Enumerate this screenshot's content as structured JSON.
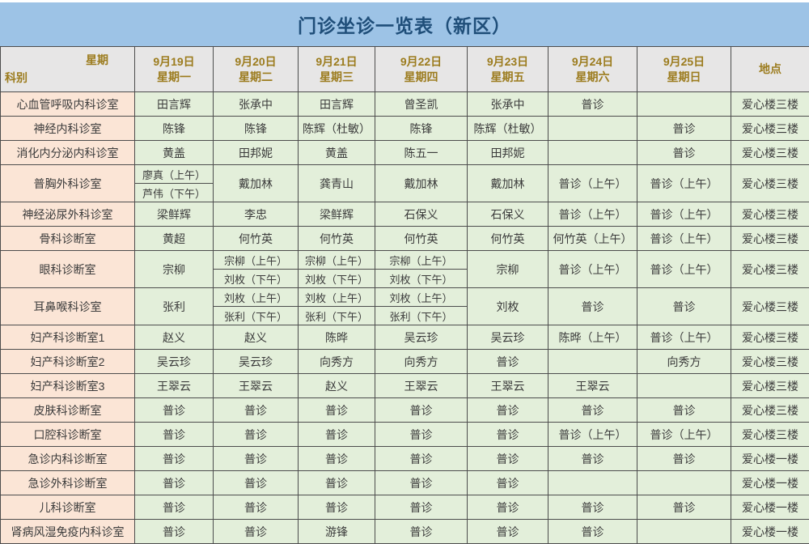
{
  "title": "门诊坐诊一览表（新区）",
  "colors": {
    "title_bg": "#9DC3E6",
    "title_text": "#1F4E79",
    "header_bg": "#E7E6E6",
    "header_text": "#9C7C1E",
    "dept_col_bg": "#FBE5D6",
    "cell_bg": "#E3EFDA",
    "border": "#4D4D4D"
  },
  "header": {
    "corner_top": "星期",
    "corner_bottom": "科别",
    "days": [
      {
        "date": "9月19日",
        "weekday": "星期一"
      },
      {
        "date": "9月20日",
        "weekday": "星期二"
      },
      {
        "date": "9月21日",
        "weekday": "星期三"
      },
      {
        "date": "9月22日",
        "weekday": "星期四"
      },
      {
        "date": "9月23日",
        "weekday": "星期五"
      },
      {
        "date": "9月24日",
        "weekday": "星期六"
      },
      {
        "date": "9月25日",
        "weekday": "星期日"
      }
    ],
    "location_label": "地点"
  },
  "rows": [
    {
      "name": "心血管呼吸内科诊室",
      "cells": [
        "田言辉",
        "张承中",
        "田言辉",
        "曾圣凯",
        "张承中",
        "普诊",
        ""
      ],
      "location": "爱心楼三楼"
    },
    {
      "name": "神经内科诊室",
      "cells": [
        "陈锋",
        "陈锋",
        "陈辉（杜敏）",
        "陈锋",
        "陈辉（杜敏）",
        "",
        "普诊"
      ],
      "location": "爱心楼三楼"
    },
    {
      "name": "消化内分泌内科诊室",
      "cells": [
        "黄盖",
        "田邦妮",
        "黄盖",
        "陈五一",
        "田邦妮",
        "",
        "普诊"
      ],
      "location": "爱心楼三楼"
    },
    {
      "name": "普胸外科诊室",
      "cells": [
        {
          "top": "廖真（上午）",
          "bottom": "芦伟（下午）"
        },
        "戴加林",
        "龚青山",
        "戴加林",
        "戴加林",
        "普诊（上午）",
        "普诊（上午）"
      ],
      "location": "爱心楼三楼"
    },
    {
      "name": "神经泌尿外科诊室",
      "cells": [
        "梁鲜辉",
        "李忠",
        "梁鲜辉",
        "石保义",
        "石保义",
        "普诊（上午）",
        "普诊（上午）"
      ],
      "location": "爱心楼三楼"
    },
    {
      "name": "骨科诊断室",
      "cells": [
        "黄超",
        "何竹英",
        "何竹英",
        "何竹英",
        "何竹英",
        "何竹英（上午）",
        "普诊（上午）"
      ],
      "location": "爱心楼三楼"
    },
    {
      "name": "眼科诊断室",
      "cells": [
        "宗柳",
        {
          "top": "宗柳（上午）",
          "bottom": "刘枚（下午）"
        },
        {
          "top": "宗柳（上午）",
          "bottom": "刘枚（下午）"
        },
        {
          "top": "宗柳（上午）",
          "bottom": "刘枚（下午）"
        },
        "宗柳",
        "普诊（上午）",
        "普诊（上午）"
      ],
      "location": "爱心楼三楼"
    },
    {
      "name": "耳鼻喉科诊室",
      "cells": [
        "张利",
        {
          "top": "刘枚（上午）",
          "bottom": "张利（下午）"
        },
        {
          "top": "刘枚（上午）",
          "bottom": "张利（下午）"
        },
        {
          "top": "刘枚（上午）",
          "bottom": "张利（下午）"
        },
        "刘枚",
        "普诊",
        "普诊"
      ],
      "location": "爱心楼三楼"
    },
    {
      "name": "妇产科诊断室1",
      "cells": [
        "赵义",
        "赵义",
        "陈晔",
        "吴云珍",
        "吴云珍",
        "陈晔（上午）",
        "普诊（上午）"
      ],
      "location": "爱心楼三楼"
    },
    {
      "name": "妇产科诊断室2",
      "cells": [
        "吴云珍",
        "吴云珍",
        "向秀方",
        "向秀方",
        "普诊",
        "",
        "向秀方"
      ],
      "location": "爱心楼三楼"
    },
    {
      "name": "妇产科诊断室3",
      "cells": [
        "王翠云",
        "王翠云",
        "赵义",
        "王翠云",
        "王翠云",
        "王翠云",
        ""
      ],
      "location": "爱心楼三楼"
    },
    {
      "name": "皮肤科诊断室",
      "cells": [
        "普诊",
        "普诊",
        "普诊",
        "普诊",
        "普诊",
        "普诊",
        "普诊"
      ],
      "location": "爱心楼三楼"
    },
    {
      "name": "口腔科诊断室",
      "cells": [
        "普诊",
        "普诊",
        "普诊",
        "普诊",
        "普诊",
        "普诊（上午）",
        "普诊（上午）"
      ],
      "location": "爱心楼三楼"
    },
    {
      "name": "急诊内科诊断室",
      "cells": [
        "普诊",
        "普诊",
        "普诊",
        "普诊",
        "普诊",
        "普诊",
        "普诊"
      ],
      "location": "爱心楼一楼"
    },
    {
      "name": "急诊外科诊断室",
      "cells": [
        "普诊",
        "普诊",
        "普诊",
        "普诊",
        "普诊",
        "",
        ""
      ],
      "location": "爱心楼一楼"
    },
    {
      "name": "儿科诊断室",
      "cells": [
        "普诊",
        "普诊",
        "普诊",
        "普诊",
        "普诊",
        "普诊",
        "普诊"
      ],
      "location": "爱心楼一楼"
    },
    {
      "name": "肾病风湿免疫内科诊室",
      "cells": [
        "普诊",
        "普诊",
        "游锋",
        "普诊",
        "普诊",
        "普诊",
        ""
      ],
      "location": "爱心楼一楼"
    }
  ]
}
